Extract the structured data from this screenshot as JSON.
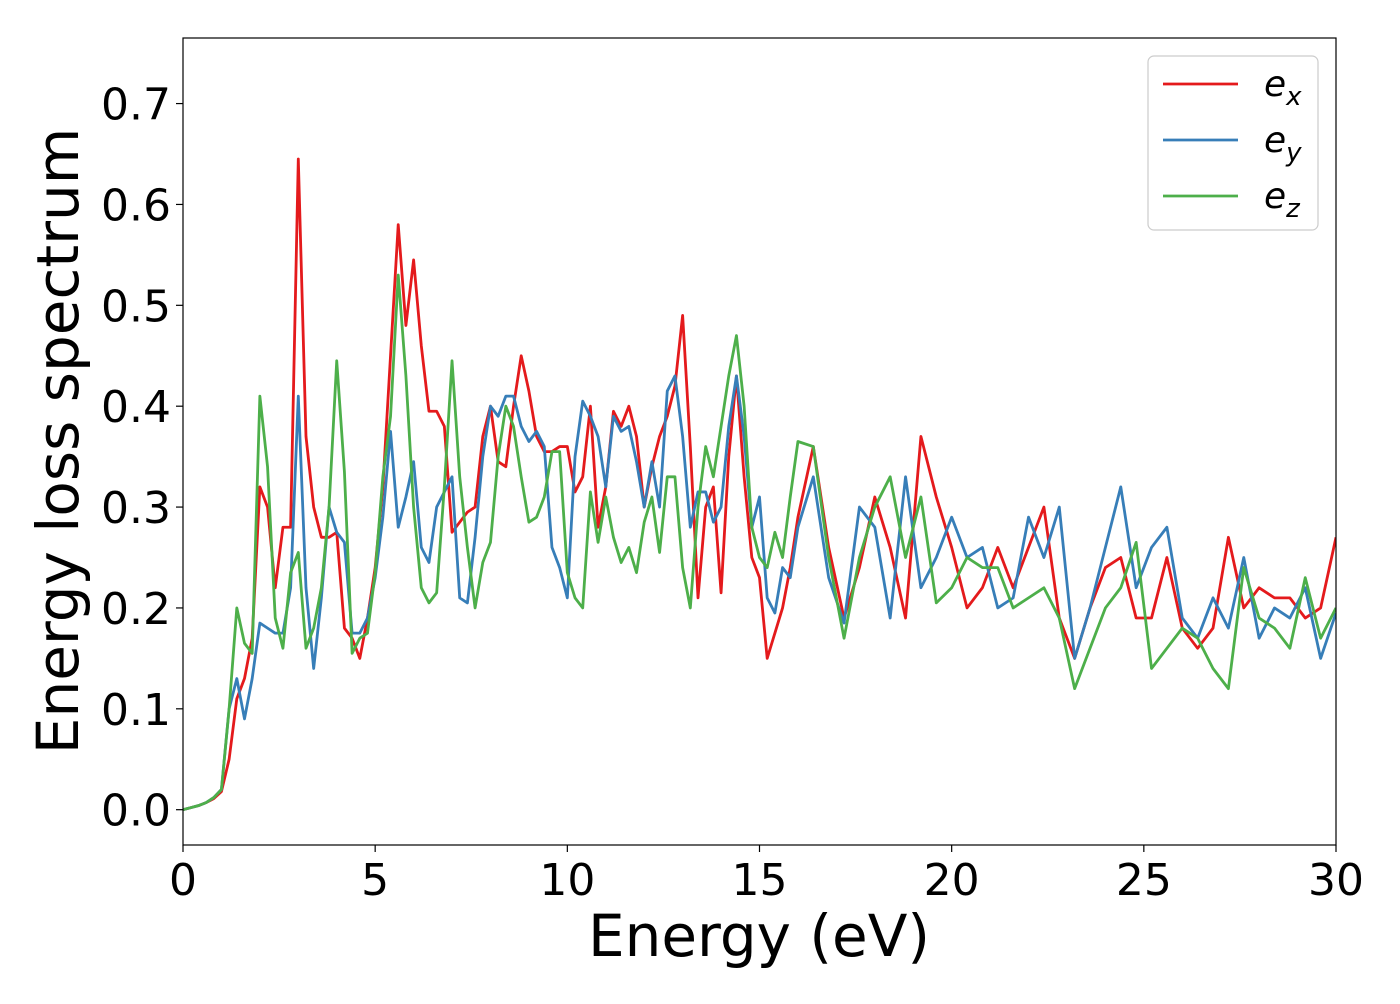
{
  "chart_data": {
    "type": "line",
    "xlabel": "Energy (eV)",
    "ylabel": "Energy loss spectrum",
    "xlim": [
      0,
      30
    ],
    "ylim": [
      -0.035,
      0.765
    ],
    "xticks": [
      0,
      5,
      10,
      15,
      20,
      25,
      30
    ],
    "yticks": [
      {
        "value": 0,
        "label": "0.0"
      },
      0.1,
      0.2,
      0.3,
      0.4,
      0.5,
      0.6,
      0.7
    ],
    "legend": "upper right",
    "x": [
      0,
      0.2,
      0.4,
      0.6,
      0.8,
      1,
      1.2,
      1.4,
      1.6,
      1.8,
      2,
      2.2,
      2.4,
      2.6,
      2.8,
      3,
      3.2,
      3.4,
      3.6,
      3.8,
      4,
      4.2,
      4.4,
      4.6,
      4.8,
      5,
      5.2,
      5.4,
      5.6,
      5.8,
      6,
      6.2,
      6.4,
      6.6,
      6.8,
      7,
      7.2,
      7.4,
      7.6,
      7.8,
      8,
      8.2,
      8.4,
      8.6,
      8.8,
      9,
      9.2,
      9.4,
      9.6,
      9.8,
      10,
      10.2,
      10.4,
      10.6,
      10.8,
      11,
      11.2,
      11.4,
      11.6,
      11.8,
      12,
      12.2,
      12.4,
      12.6,
      12.8,
      13,
      13.2,
      13.4,
      13.6,
      13.8,
      14,
      14.2,
      14.4,
      14.6,
      14.8,
      15,
      15.2,
      15.4,
      15.6,
      15.8,
      16,
      16.4,
      16.8,
      17.2,
      17.6,
      18,
      18.4,
      18.8,
      19.2,
      19.6,
      20,
      20.4,
      20.8,
      21.2,
      21.6,
      22,
      22.4,
      22.8,
      23.2,
      23.6,
      24,
      24.4,
      24.8,
      25.2,
      25.6,
      26,
      26.4,
      26.8,
      27.2,
      27.6,
      28,
      28.4,
      28.8,
      29.2,
      29.6,
      30
    ],
    "series": [
      {
        "name": "e",
        "subscript": "x",
        "color": "#e41a1c",
        "values": [
          0,
          0.002,
          0.004,
          0.007,
          0.011,
          0.018,
          0.05,
          0.11,
          0.13,
          0.17,
          0.32,
          0.3,
          0.22,
          0.28,
          0.28,
          0.645,
          0.37,
          0.3,
          0.27,
          0.27,
          0.275,
          0.18,
          0.17,
          0.15,
          0.19,
          0.24,
          0.32,
          0.45,
          0.58,
          0.48,
          0.545,
          0.46,
          0.395,
          0.395,
          0.38,
          0.275,
          0.285,
          0.295,
          0.3,
          0.37,
          0.4,
          0.345,
          0.34,
          0.4,
          0.45,
          0.415,
          0.37,
          0.355,
          0.355,
          0.36,
          0.36,
          0.315,
          0.33,
          0.4,
          0.28,
          0.32,
          0.395,
          0.38,
          0.4,
          0.37,
          0.3,
          0.34,
          0.37,
          0.39,
          0.42,
          0.49,
          0.36,
          0.21,
          0.3,
          0.32,
          0.215,
          0.35,
          0.43,
          0.33,
          0.25,
          0.23,
          0.15,
          0.175,
          0.2,
          0.24,
          0.29,
          0.36,
          0.26,
          0.19,
          0.24,
          0.31,
          0.26,
          0.19,
          0.37,
          0.31,
          0.26,
          0.2,
          0.22,
          0.26,
          0.22,
          0.26,
          0.3,
          0.19,
          0.15,
          0.2,
          0.24,
          0.25,
          0.19,
          0.19,
          0.25,
          0.18,
          0.16,
          0.18,
          0.27,
          0.2,
          0.22,
          0.21,
          0.21,
          0.19,
          0.2,
          0.27
        ]
      },
      {
        "name": "e",
        "subscript": "y",
        "color": "#377eb8",
        "values": [
          0,
          0.002,
          0.004,
          0.007,
          0.012,
          0.02,
          0.1,
          0.13,
          0.09,
          0.13,
          0.185,
          0.18,
          0.175,
          0.175,
          0.22,
          0.41,
          0.22,
          0.14,
          0.21,
          0.3,
          0.275,
          0.265,
          0.175,
          0.175,
          0.19,
          0.23,
          0.29,
          0.375,
          0.28,
          0.31,
          0.345,
          0.26,
          0.245,
          0.3,
          0.315,
          0.33,
          0.21,
          0.205,
          0.27,
          0.35,
          0.4,
          0.39,
          0.41,
          0.41,
          0.38,
          0.365,
          0.375,
          0.36,
          0.26,
          0.24,
          0.21,
          0.35,
          0.405,
          0.39,
          0.37,
          0.32,
          0.39,
          0.375,
          0.38,
          0.345,
          0.3,
          0.345,
          0.3,
          0.415,
          0.43,
          0.37,
          0.28,
          0.315,
          0.315,
          0.285,
          0.3,
          0.38,
          0.43,
          0.37,
          0.28,
          0.31,
          0.21,
          0.195,
          0.24,
          0.23,
          0.28,
          0.33,
          0.23,
          0.185,
          0.3,
          0.28,
          0.19,
          0.33,
          0.22,
          0.25,
          0.29,
          0.25,
          0.26,
          0.2,
          0.21,
          0.29,
          0.25,
          0.3,
          0.15,
          0.2,
          0.26,
          0.32,
          0.22,
          0.26,
          0.28,
          0.19,
          0.17,
          0.21,
          0.18,
          0.25,
          0.17,
          0.2,
          0.19,
          0.22,
          0.15,
          0.195
        ]
      },
      {
        "name": "e",
        "subscript": "z",
        "color": "#4daf4a",
        "values": [
          0,
          0.002,
          0.004,
          0.007,
          0.012,
          0.02,
          0.1,
          0.2,
          0.165,
          0.155,
          0.41,
          0.34,
          0.19,
          0.16,
          0.235,
          0.255,
          0.16,
          0.18,
          0.22,
          0.3,
          0.445,
          0.335,
          0.155,
          0.17,
          0.175,
          0.235,
          0.33,
          0.39,
          0.53,
          0.43,
          0.3,
          0.22,
          0.205,
          0.215,
          0.32,
          0.445,
          0.33,
          0.26,
          0.2,
          0.245,
          0.265,
          0.35,
          0.4,
          0.38,
          0.33,
          0.285,
          0.29,
          0.31,
          0.355,
          0.355,
          0.235,
          0.21,
          0.2,
          0.315,
          0.265,
          0.31,
          0.27,
          0.245,
          0.26,
          0.235,
          0.285,
          0.31,
          0.255,
          0.33,
          0.33,
          0.24,
          0.2,
          0.3,
          0.36,
          0.33,
          0.38,
          0.43,
          0.47,
          0.4,
          0.28,
          0.25,
          0.24,
          0.275,
          0.25,
          0.31,
          0.365,
          0.36,
          0.25,
          0.17,
          0.25,
          0.3,
          0.33,
          0.25,
          0.31,
          0.205,
          0.22,
          0.25,
          0.24,
          0.24,
          0.2,
          0.21,
          0.22,
          0.19,
          0.12,
          0.16,
          0.2,
          0.22,
          0.265,
          0.14,
          0.16,
          0.18,
          0.17,
          0.14,
          0.12,
          0.24,
          0.19,
          0.18,
          0.16,
          0.23,
          0.17,
          0.2
        ]
      }
    ]
  }
}
